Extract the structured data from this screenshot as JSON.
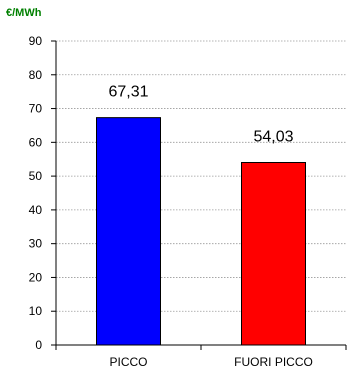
{
  "chart_data": {
    "type": "bar",
    "unit_label": "€/MWh",
    "categories": [
      "PICCO",
      "FUORI PICCO"
    ],
    "values": [
      67.31,
      54.03
    ],
    "data_labels": [
      "67,31",
      "54,03"
    ],
    "ylim": [
      0,
      90
    ],
    "yticks": [
      0,
      10,
      20,
      30,
      40,
      50,
      60,
      70,
      80,
      90
    ],
    "colors": [
      "#0000ff",
      "#ff0000"
    ],
    "gridlines": true
  }
}
